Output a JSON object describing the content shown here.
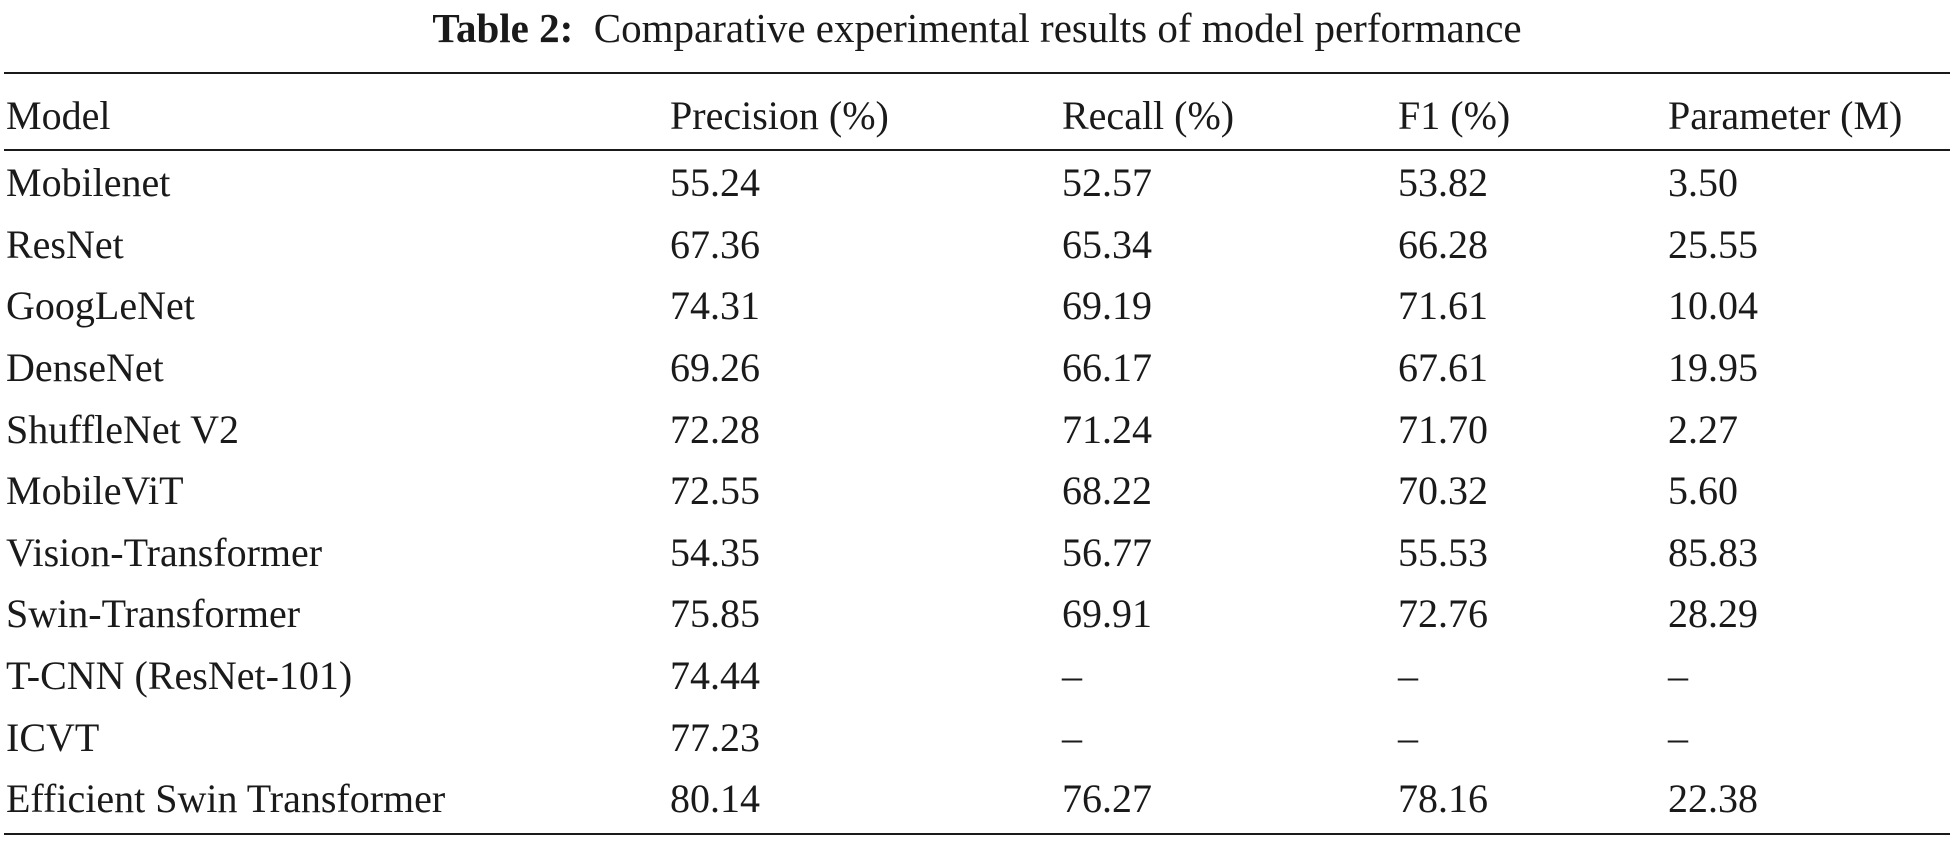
{
  "caption": {
    "label": "Table 2:",
    "text": "Comparative experimental results of model performance"
  },
  "table": {
    "headers": [
      "Model",
      "Precision (%)",
      "Recall (%)",
      "F1 (%)",
      "Parameter (M)"
    ],
    "rows": [
      [
        "Mobilenet",
        "55.24",
        "52.57",
        "53.82",
        "3.50"
      ],
      [
        "ResNet",
        "67.36",
        "65.34",
        "66.28",
        "25.55"
      ],
      [
        "GoogLeNet",
        "74.31",
        "69.19",
        "71.61",
        "10.04"
      ],
      [
        "DenseNet",
        "69.26",
        "66.17",
        "67.61",
        "19.95"
      ],
      [
        "ShuffleNet V2",
        "72.28",
        "71.24",
        "71.70",
        "2.27"
      ],
      [
        "MobileViT",
        "72.55",
        "68.22",
        "70.32",
        "5.60"
      ],
      [
        "Vision-Transformer",
        "54.35",
        "56.77",
        "55.53",
        "85.83"
      ],
      [
        "Swin-Transformer",
        "75.85",
        "69.91",
        "72.76",
        "28.29"
      ],
      [
        "T-CNN (ResNet-101)",
        "74.44",
        "–",
        "–",
        "–"
      ],
      [
        "ICVT",
        "77.23",
        "–",
        "–",
        "–"
      ],
      [
        "Efficient Swin Transformer",
        "80.14",
        "76.27",
        "78.16",
        "22.38"
      ]
    ]
  }
}
